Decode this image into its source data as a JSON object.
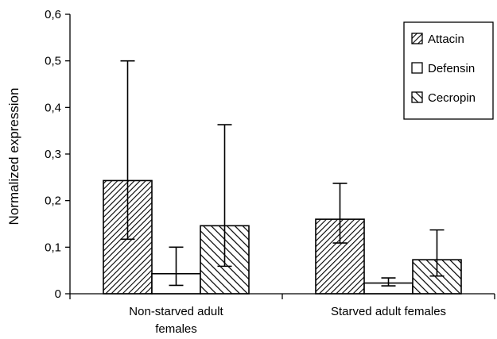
{
  "chart_data": {
    "type": "bar",
    "title": "",
    "xlabel": "",
    "ylabel": "Normalized expression",
    "ylim": [
      0,
      0.6
    ],
    "yticks": [
      "0",
      "0,1",
      "0,2",
      "0,3",
      "0,4",
      "0,5",
      "0,6"
    ],
    "ytick_values": [
      0,
      0.1,
      0.2,
      0.3,
      0.4,
      0.5,
      0.6
    ],
    "categories": [
      [
        "Non-starved adult",
        "females"
      ],
      [
        "Starved adult females"
      ]
    ],
    "series": [
      {
        "name": "Attacin",
        "pattern": "hatch-forward",
        "values": [
          0.243,
          0.16
        ],
        "err_low": [
          0.117,
          0.109
        ],
        "err_high": [
          0.5,
          0.237
        ]
      },
      {
        "name": "Defensin",
        "pattern": "plain",
        "values": [
          0.043,
          0.023
        ],
        "err_low": [
          0.018,
          0.017
        ],
        "err_high": [
          0.1,
          0.034
        ]
      },
      {
        "name": "Cecropin",
        "pattern": "hatch-backward",
        "values": [
          0.146,
          0.073
        ],
        "err_low": [
          0.059,
          0.038
        ],
        "err_high": [
          0.363,
          0.137
        ]
      }
    ],
    "legend_position": "top-right",
    "grid": false,
    "colors": {
      "bar_fill": "#ffffff",
      "stroke": "#000000"
    }
  }
}
